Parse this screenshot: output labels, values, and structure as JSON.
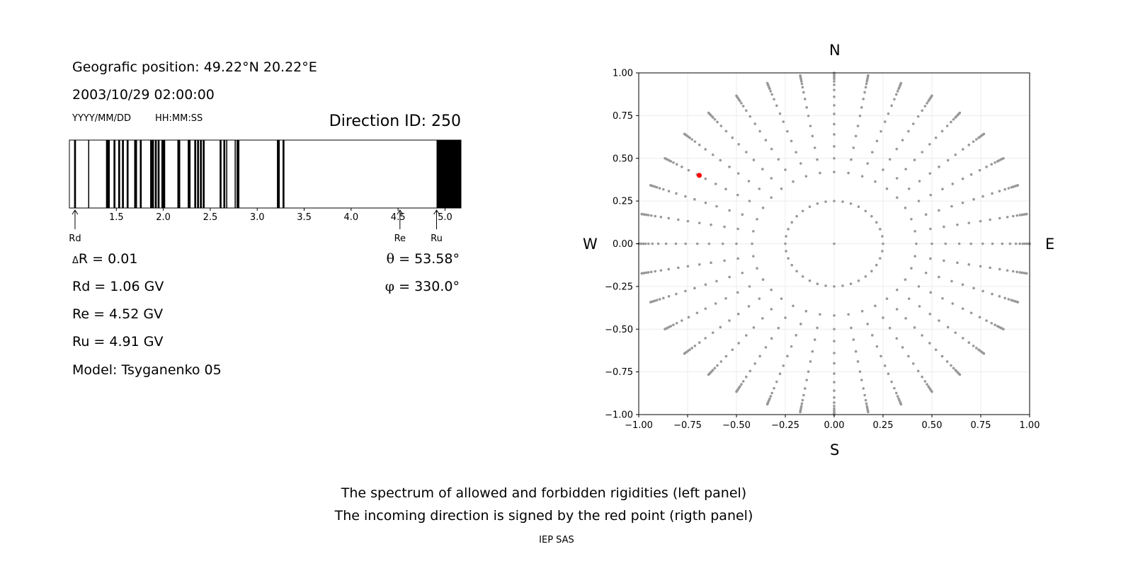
{
  "header": {
    "position": "Geografic position: 49.22°N 20.22°E",
    "datetime": "2003/10/29 02:00:00",
    "date_format": "YYYY/MM/DD",
    "time_format": "HH:MM:SS",
    "direction_id": "Direction ID: 250"
  },
  "params": {
    "delta_r_symbol": "Δ",
    "delta_r": "R = 0.01",
    "rd": "Rd = 1.06 GV",
    "re": "Re = 4.52 GV",
    "ru": "Ru = 4.91 GV",
    "model": "Model: Tsyganenko 05",
    "theta_symbol": "θ",
    "theta": " = 53.58°",
    "phi_symbol": "φ",
    "phi": " = 330.0°"
  },
  "compass": {
    "n": "N",
    "s": "S",
    "w": "W",
    "e": "E"
  },
  "caption": {
    "line1": "The spectrum of allowed and forbidden rigidities (left panel)",
    "line2": "The incoming direction is signed by the red point (rigth panel)",
    "credit": "IEP SAS"
  },
  "colors": {
    "forbidden": "#000000",
    "allowed": "#ffffff",
    "grid_points": "#999999",
    "direction_point": "#ff0000"
  },
  "chart_data": [
    {
      "type": "bar",
      "name": "rigidity-spectrum",
      "xlim": [
        1.0,
        5.17
      ],
      "ticks": [
        1.5,
        2.0,
        2.5,
        3.0,
        3.5,
        4.0,
        4.5,
        5.0
      ],
      "tick_labels": [
        "1.5",
        "2.0",
        "2.5",
        "3.0",
        "3.5",
        "4.0",
        "4.5",
        "5.0"
      ],
      "forbidden_bands": [
        [
          1.05,
          1.07
        ],
        [
          1.2,
          1.21
        ],
        [
          1.39,
          1.43
        ],
        [
          1.47,
          1.49
        ],
        [
          1.52,
          1.54
        ],
        [
          1.56,
          1.58
        ],
        [
          1.61,
          1.63
        ],
        [
          1.69,
          1.72
        ],
        [
          1.75,
          1.77
        ],
        [
          1.86,
          1.9
        ],
        [
          1.91,
          1.93
        ],
        [
          1.94,
          1.96
        ],
        [
          1.98,
          2.02
        ],
        [
          2.15,
          2.18
        ],
        [
          2.26,
          2.29
        ],
        [
          2.33,
          2.35
        ],
        [
          2.36,
          2.38
        ],
        [
          2.39,
          2.41
        ],
        [
          2.42,
          2.44
        ],
        [
          2.6,
          2.62
        ],
        [
          2.64,
          2.66
        ],
        [
          2.67,
          2.68
        ],
        [
          2.76,
          2.77
        ],
        [
          2.78,
          2.81
        ],
        [
          3.21,
          3.24
        ],
        [
          3.27,
          3.29
        ],
        [
          4.91,
          5.17
        ]
      ],
      "markers": [
        {
          "label": "Rd",
          "x": 1.06
        },
        {
          "label": "Re",
          "x": 4.52
        },
        {
          "label": "Ru",
          "x": 4.91
        }
      ]
    },
    {
      "type": "scatter",
      "name": "direction-grid",
      "xlim": [
        -1.0,
        1.0
      ],
      "ylim": [
        -1.0,
        1.0
      ],
      "xticks": [
        "−1.00",
        "−0.75",
        "−0.50",
        "−0.25",
        "0.00",
        "0.25",
        "0.50",
        "0.75",
        "1.00"
      ],
      "yticks": [
        "1.00",
        "0.75",
        "0.50",
        "0.25",
        "0.00",
        "−0.25",
        "−0.50",
        "−0.75",
        "−1.00"
      ],
      "grid": true,
      "grid_points": {
        "azimuth_step_deg": 10,
        "radii": [
          0.25,
          0.42,
          0.5,
          0.57,
          0.64,
          0.7,
          0.76,
          0.81,
          0.86,
          0.9,
          0.93,
          0.95,
          0.965,
          0.975,
          0.985,
          0.993,
          1.0
        ]
      },
      "highlight": {
        "x": -0.69,
        "y": 0.4
      }
    }
  ]
}
